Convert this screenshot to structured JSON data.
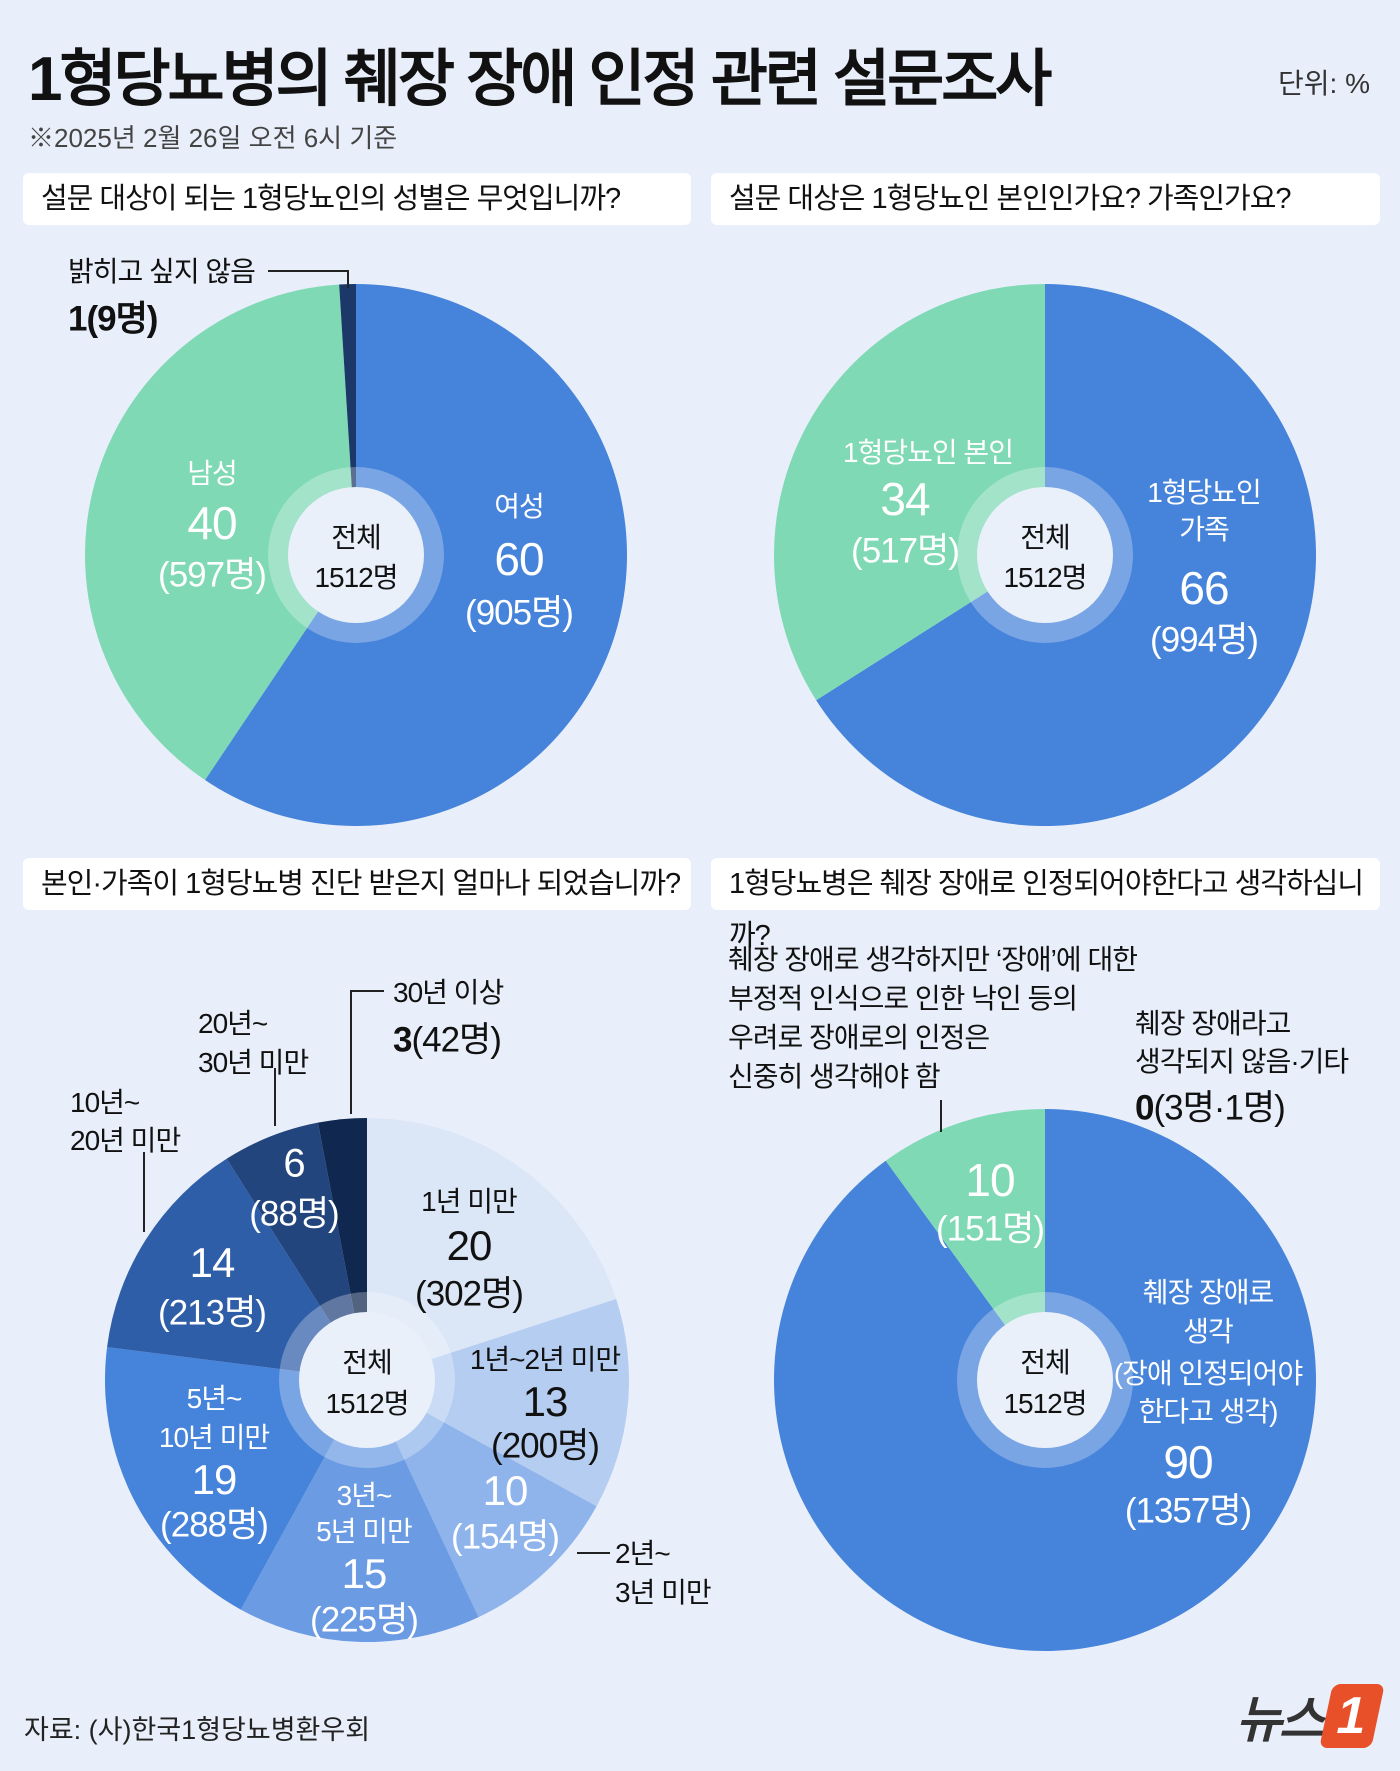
{
  "header": {
    "title": "1형당뇨병의 췌장 장애 인정 관련 설문조사",
    "unit": "단위: %",
    "date_note": "※2025년 2월 26일 오전 6시 기준"
  },
  "center_label": {
    "total": "전체",
    "count": "1512명"
  },
  "colors": {
    "background": "#e9effa",
    "blue": "#4683da",
    "green": "#7fd9b5",
    "navy": "#1c3868"
  },
  "chart_data": [
    {
      "type": "pie",
      "title": "설문 대상이 되는 1형당뇨인의 성별은 무엇입니까?",
      "slices": [
        {
          "name": "여성",
          "value": 60,
          "count": "(905명)",
          "color": "#4683da"
        },
        {
          "name": "남성",
          "value": 40,
          "count": "(597명)",
          "color": "#7fd9b5"
        },
        {
          "name": "밝히고 싶지 않음",
          "value": 1,
          "count": "1(9명)",
          "color": "#1c3868"
        }
      ]
    },
    {
      "type": "pie",
      "title": "설문 대상은 1형당뇨인 본인인가요? 가족인가요?",
      "slices": [
        {
          "name": "1형당뇨인 가족",
          "name_lines": [
            "1형당뇨인",
            "가족"
          ],
          "value": 66,
          "count": "(994명)",
          "color": "#4683da"
        },
        {
          "name": "1형당뇨인 본인",
          "value": 34,
          "count": "(517명)",
          "color": "#7fd9b5"
        }
      ]
    },
    {
      "type": "pie",
      "title": "본인·가족이 1형당뇨병 진단 받은지 얼마나 되었습니까?",
      "slices": [
        {
          "name": "1년 미만",
          "value": 20,
          "count": "(302명)",
          "color": "#dbe7f7"
        },
        {
          "name": "1년~2년 미만",
          "value": 13,
          "count": "(200명)",
          "color": "#b5cdf1"
        },
        {
          "name": "2년~3년 미만",
          "name_lines": [
            "2년~",
            "3년 미만"
          ],
          "value": 10,
          "count": "(154명)",
          "color": "#8fb4eb"
        },
        {
          "name": "3년~5년 미만",
          "name_lines": [
            "3년~",
            "5년 미만"
          ],
          "value": 15,
          "count": "(225명)",
          "color": "#6b9be3"
        },
        {
          "name": "5년~10년 미만",
          "name_lines": [
            "5년~",
            "10년 미만"
          ],
          "value": 19,
          "count": "(288명)",
          "color": "#4683da"
        },
        {
          "name": "10년~20년 미만",
          "name_lines": [
            "10년~",
            "20년 미만"
          ],
          "value": 14,
          "count": "(213명)",
          "color": "#2f5ea9"
        },
        {
          "name": "20년~30년 미만",
          "name_lines": [
            "20년~",
            "30년 미만"
          ],
          "value": 6,
          "count": "(88명)",
          "color": "#23457d"
        },
        {
          "name": "30년 이상",
          "value": 3,
          "count": "(42명)",
          "color": "#10284f"
        }
      ]
    },
    {
      "type": "pie",
      "title": "1형당뇨병은 췌장 장애로 인정되어야한다고 생각하십니까?",
      "slices": [
        {
          "name": "췌장 장애로 생각 (장애 인정되어야 한다고 생각)",
          "name_lines": [
            "췌장 장애로",
            "생각",
            "(장애 인정되어야",
            "한다고 생각)"
          ],
          "value": 90,
          "count": "(1357명)",
          "color": "#4683da"
        },
        {
          "name": "췌장 장애로 생각하지만 ‘장애’에 대한 부정적 인식으로 인한 낙인 등의 우려로 장애로의 인정은 신중히 생각해야 함",
          "name_lines": [
            "췌장 장애로 생각하지만 ‘장애’에 대한",
            "부정적 인식으로 인한 낙인 등의",
            "우려로 장애로의 인정은",
            "신중히 생각해야 함"
          ],
          "value": 10,
          "count": "(151명)",
          "color": "#7fd9b5"
        },
        {
          "name": "췌장 장애라고 생각되지 않음·기타",
          "name_lines": [
            "췌장 장애라고",
            "생각되지 않음·기타"
          ],
          "value": 0,
          "count": "(3명·1명)",
          "color": "#1c3868"
        }
      ]
    }
  ],
  "footer": {
    "source": "자료: (사)한국1형당뇨병환우회",
    "logo": "뉴스1"
  }
}
